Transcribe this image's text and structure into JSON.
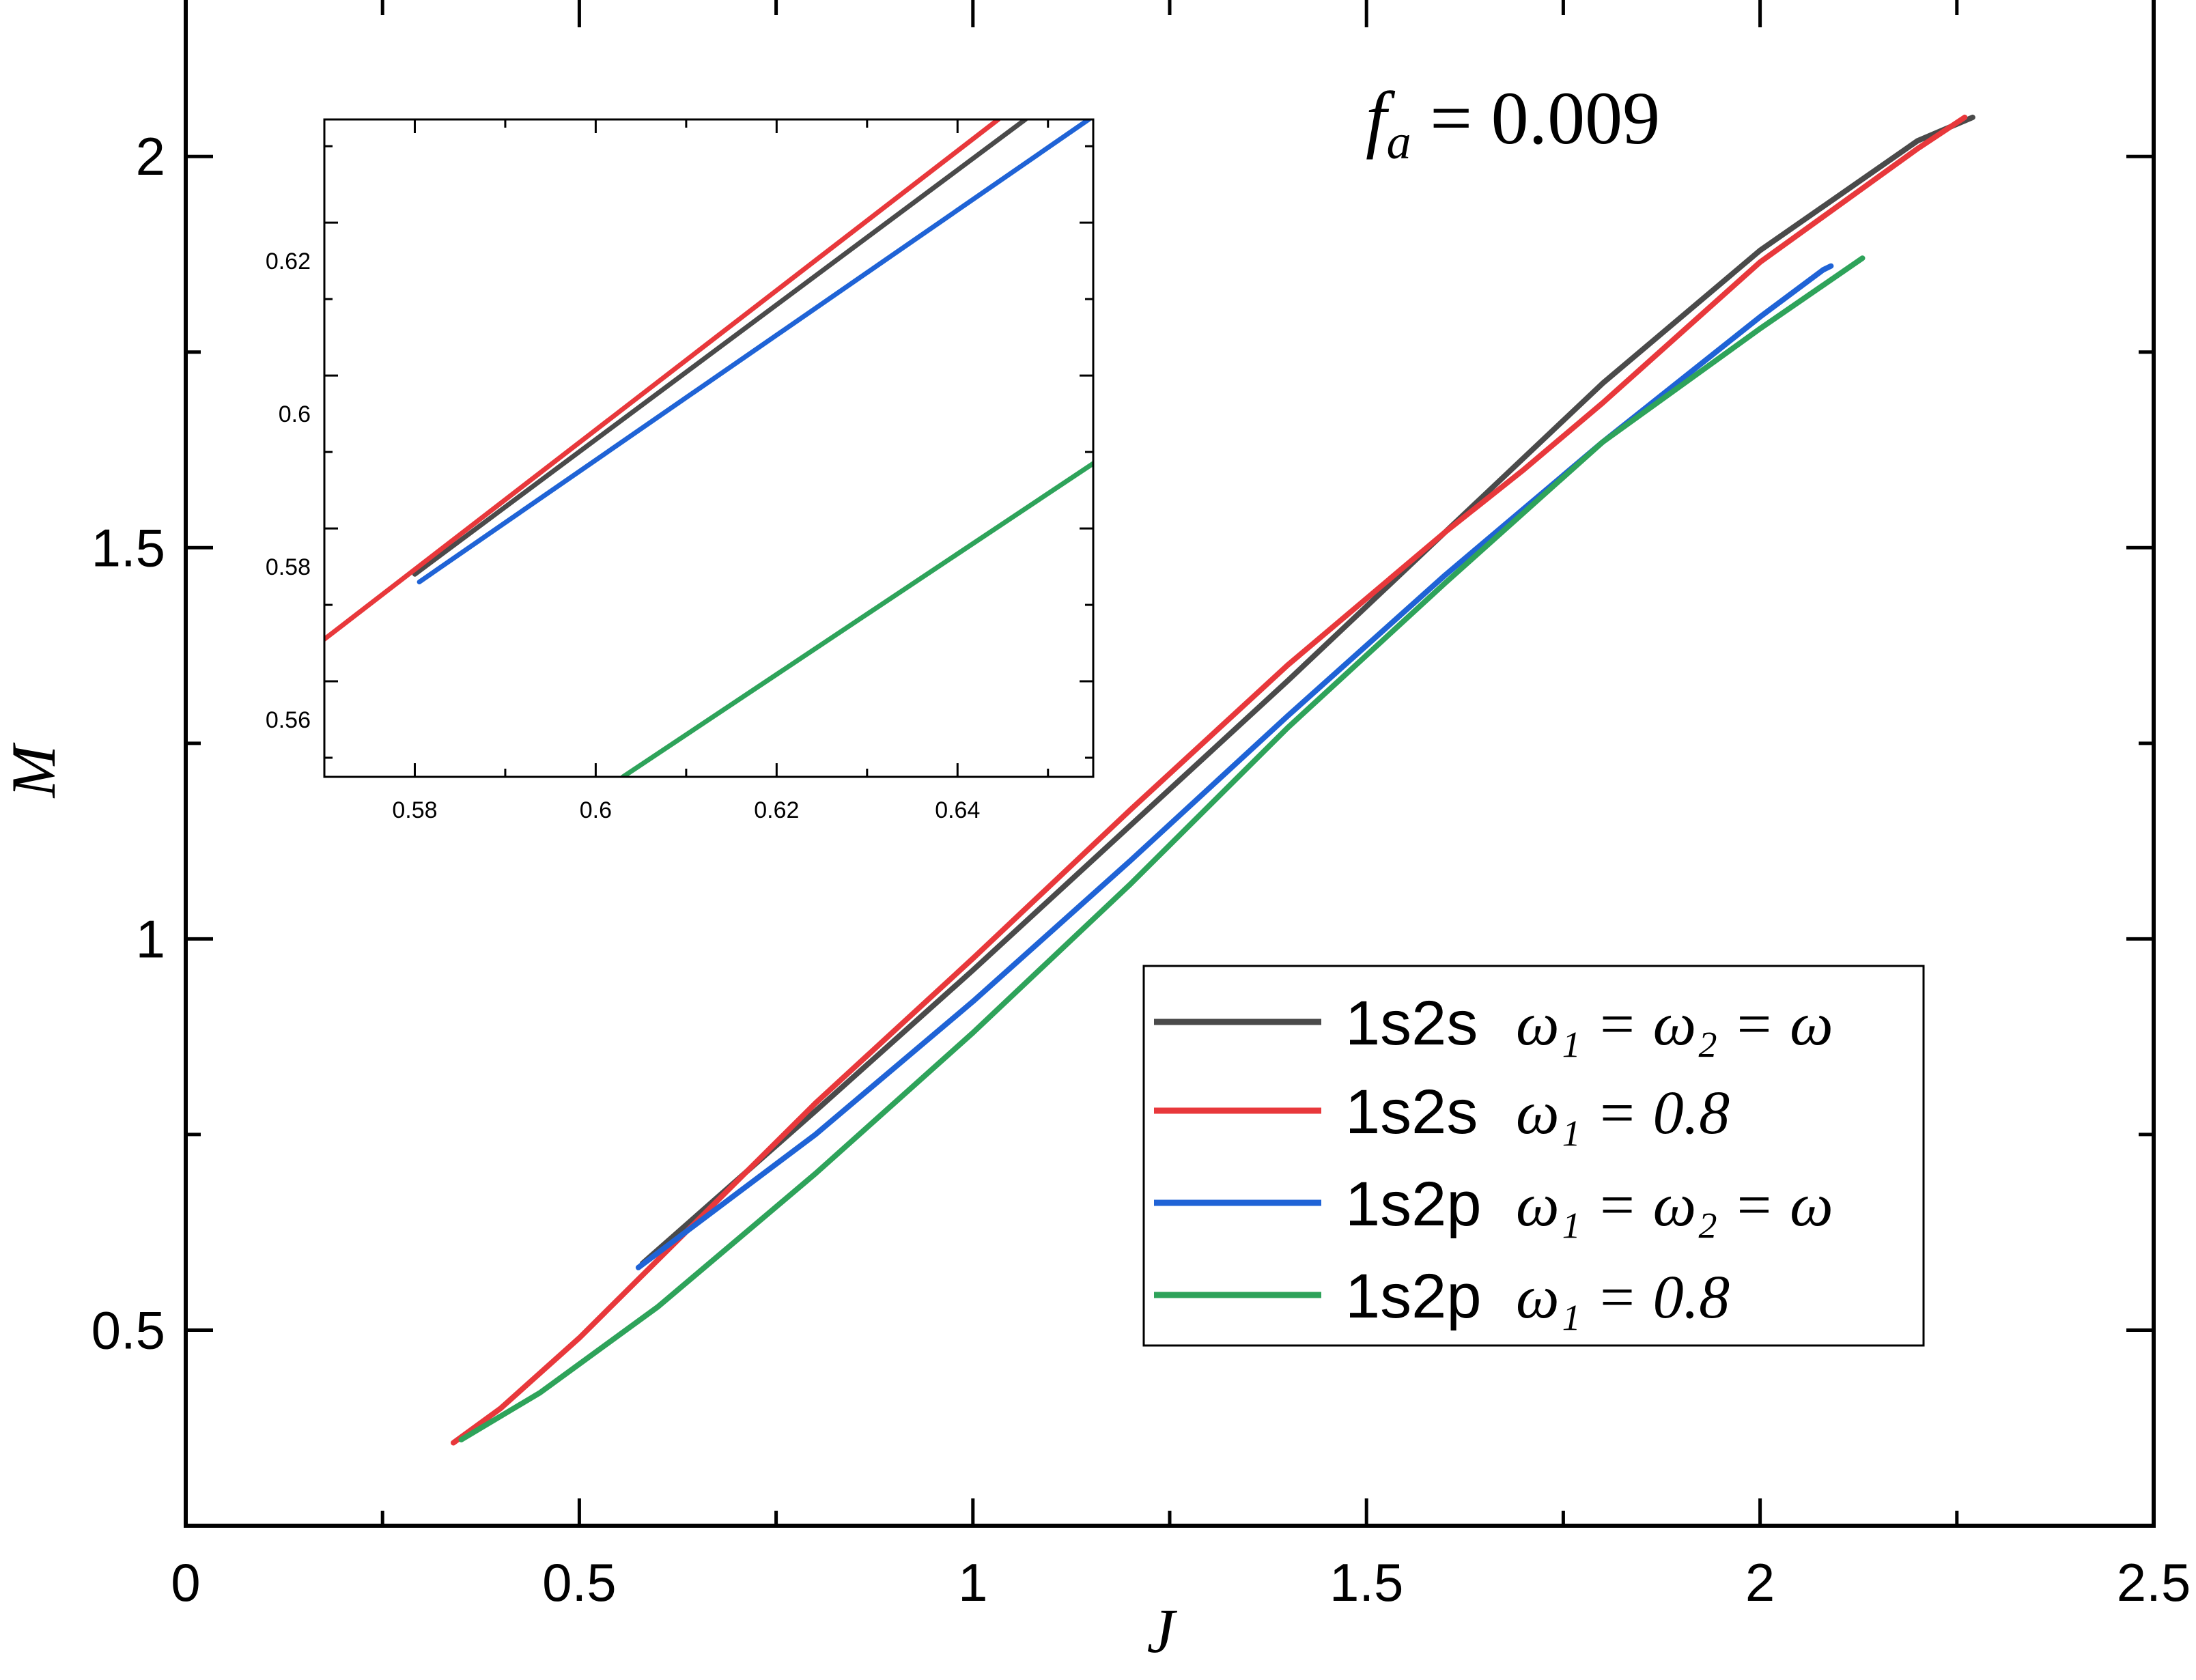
{
  "chart_data": [
    {
      "type": "line",
      "xlabel": "J",
      "ylabel": "M",
      "xlim": [
        0,
        2.5
      ],
      "ylim": [
        0.25,
        2.2
      ],
      "xticks": [
        0,
        0.5,
        1,
        1.5,
        2,
        2.5
      ],
      "xtick_labels": [
        "0",
        "0.5",
        "1",
        "1.5",
        "2",
        "2.5"
      ],
      "yticks": [
        0.5,
        1,
        1.5,
        2
      ],
      "ytick_labels": [
        "0.5",
        "1",
        "1.5",
        "2"
      ],
      "annotation": {
        "lhs": "f",
        "sub": "a",
        "rhs": " = 0.009"
      },
      "legend_position": "bottom-right",
      "grid": false,
      "series": [
        {
          "name": "1s2s",
          "legend_math": "ω₁ = ω₂ = ω",
          "color": "#4a4a4a",
          "x": [
            0.58,
            0.8,
            1.0,
            1.2,
            1.4,
            1.6,
            1.8,
            2.0,
            2.2,
            2.27
          ],
          "y": [
            0.585,
            0.78,
            0.96,
            1.145,
            1.33,
            1.52,
            1.71,
            1.88,
            2.02,
            2.05
          ]
        },
        {
          "name": "1s2s",
          "legend_math": "ω₁ = 0.8",
          "color": "#e8383b",
          "x": [
            0.34,
            0.4,
            0.5,
            0.6,
            0.8,
            1.0,
            1.2,
            1.4,
            1.6,
            1.7,
            1.8,
            2.0,
            2.2,
            2.26
          ],
          "y": [
            0.356,
            0.4,
            0.49,
            0.59,
            0.79,
            0.975,
            1.165,
            1.35,
            1.52,
            1.6,
            1.685,
            1.865,
            2.01,
            2.05
          ]
        },
        {
          "name": "1s2p",
          "legend_math": "ω₁ = ω₂ = ω",
          "color": "#1f63d6",
          "x": [
            0.575,
            0.8,
            1.0,
            1.2,
            1.4,
            1.6,
            1.8,
            2.0,
            2.08,
            2.09
          ],
          "y": [
            0.58,
            0.75,
            0.92,
            1.1,
            1.285,
            1.465,
            1.635,
            1.795,
            1.855,
            1.86
          ]
        },
        {
          "name": "1s2p",
          "legend_math": "ω₁ = 0.8",
          "color": "#2ea35a",
          "x": [
            0.35,
            0.45,
            0.6,
            0.8,
            1.0,
            1.2,
            1.4,
            1.6,
            1.8,
            2.0,
            2.13
          ],
          "y": [
            0.36,
            0.42,
            0.53,
            0.7,
            0.88,
            1.07,
            1.27,
            1.455,
            1.635,
            1.78,
            1.87
          ]
        }
      ]
    },
    {
      "type": "line",
      "role": "inset",
      "xlim": [
        0.57,
        0.655
      ],
      "ylim": [
        0.5525,
        0.6385
      ],
      "xticks": [
        0.58,
        0.6,
        0.62,
        0.64
      ],
      "xtick_labels": [
        "0.58",
        "0.6",
        "0.62",
        "0.64"
      ],
      "yticks": [
        0.56,
        0.58,
        0.6,
        0.62
      ],
      "ytick_labels": [
        "0.56",
        "0.58",
        "0.6",
        "0.62"
      ],
      "series": [
        {
          "color": "#4a4a4a",
          "x": [
            0.58,
            0.6475
          ],
          "y": [
            0.579,
            0.6385
          ]
        },
        {
          "color": "#e8383b",
          "x": [
            0.57,
            0.6445
          ],
          "y": [
            0.5705,
            0.6385
          ]
        },
        {
          "color": "#1f63d6",
          "x": [
            0.5805,
            0.6545
          ],
          "y": [
            0.578,
            0.6385
          ]
        },
        {
          "color": "#2ea35a",
          "x": [
            0.603,
            0.655
          ],
          "y": [
            0.5525,
            0.5935
          ]
        }
      ]
    }
  ]
}
